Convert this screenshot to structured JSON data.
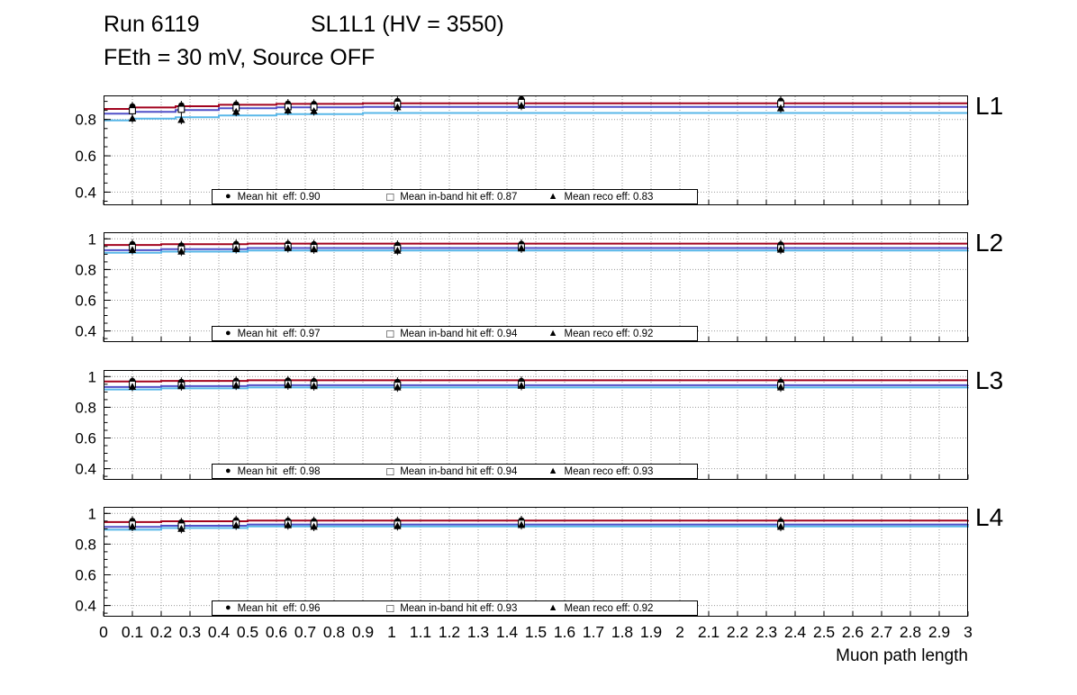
{
  "page": {
    "title_run": "Run 6119",
    "title_sl": "SL1L1 (HV = 3550)",
    "title_line2": "FEth = 30 mV, Source OFF"
  },
  "icons": {
    "filled_circle": "●",
    "open_square": "□",
    "filled_triangle": "▲"
  },
  "axes": {
    "xlim": [
      0,
      3
    ],
    "x_tick_labels": [
      "0",
      "0.1",
      "0.2",
      "0.3",
      "0.4",
      "0.5",
      "0.6",
      "0.7",
      "0.8",
      "0.9",
      "1",
      "1.1",
      "1.2",
      "1.3",
      "1.4",
      "1.5",
      "1.6",
      "1.7",
      "1.8",
      "1.9",
      "2",
      "2.1",
      "2.2",
      "2.3",
      "2.4",
      "2.5",
      "2.6",
      "2.7",
      "2.8",
      "2.9",
      "3"
    ],
    "xlabel": "Muon path length",
    "grid": "dotted"
  },
  "chart_data": [
    {
      "type": "line",
      "panel_label": "L1",
      "ylim": [
        0.33,
        0.93
      ],
      "yticks": [
        0.4,
        0.6,
        0.8
      ],
      "ytick_labels": [
        "0.4",
        "0.6",
        "0.8"
      ],
      "legend": [
        {
          "marker": "filled-circle",
          "text": "Mean hit  eff: 0.90"
        },
        {
          "marker": "open-square",
          "text": "Mean in-band hit eff: 0.87"
        },
        {
          "marker": "filled-triangle",
          "text": "Mean reco eff: 0.83"
        }
      ],
      "lines": [
        {
          "name": "mean-hit-eff",
          "color": "#a2031e",
          "steps": [
            [
              0,
              0.858
            ],
            [
              0.1,
              0.866
            ],
            [
              0.25,
              0.873
            ],
            [
              0.4,
              0.881
            ],
            [
              0.6,
              0.886
            ],
            [
              0.9,
              0.889
            ],
            [
              3,
              0.889
            ]
          ]
        },
        {
          "name": "mean-inband-hit-eff",
          "color": "#5050c8",
          "steps": [
            [
              0,
              0.832
            ],
            [
              0.1,
              0.842
            ],
            [
              0.25,
              0.852
            ],
            [
              0.4,
              0.862
            ],
            [
              0.6,
              0.867
            ],
            [
              0.9,
              0.869
            ],
            [
              3,
              0.869
            ]
          ]
        },
        {
          "name": "mean-reco-eff",
          "color": "#58b7e8",
          "steps": [
            [
              0,
              0.795
            ],
            [
              0.1,
              0.805
            ],
            [
              0.25,
              0.812
            ],
            [
              0.4,
              0.822
            ],
            [
              0.6,
              0.83
            ],
            [
              0.9,
              0.836
            ],
            [
              3,
              0.836
            ]
          ]
        }
      ],
      "markers": {
        "x": [
          0.1,
          0.27,
          0.46,
          0.64,
          0.73,
          1.02,
          1.45,
          2.35
        ],
        "hit_eff": [
          0.872,
          0.878,
          0.884,
          0.888,
          0.886,
          0.902,
          0.912,
          0.903
        ],
        "inband_hit_eff": [
          0.848,
          0.856,
          0.864,
          0.87,
          0.868,
          0.884,
          0.894,
          0.886
        ],
        "reco_eff": [
          0.806,
          0.798,
          0.842,
          0.85,
          0.846,
          0.868,
          0.876,
          0.862
        ]
      }
    },
    {
      "type": "line",
      "panel_label": "L2",
      "ylim": [
        0.33,
        1.04
      ],
      "yticks": [
        0.4,
        0.6,
        0.8,
        1
      ],
      "ytick_labels": [
        "0.4",
        "0.6",
        "0.8",
        "1"
      ],
      "legend": [
        {
          "marker": "filled-circle",
          "text": "Mean hit  eff: 0.97"
        },
        {
          "marker": "open-square",
          "text": "Mean in-band hit eff: 0.94"
        },
        {
          "marker": "filled-triangle",
          "text": "Mean reco eff: 0.92"
        }
      ],
      "lines": [
        {
          "name": "mean-hit-eff",
          "color": "#a2031e",
          "steps": [
            [
              0,
              0.96
            ],
            [
              0.2,
              0.965
            ],
            [
              0.5,
              0.969
            ],
            [
              3,
              0.969
            ]
          ]
        },
        {
          "name": "mean-inband-hit-eff",
          "color": "#5050c8",
          "steps": [
            [
              0,
              0.926
            ],
            [
              0.2,
              0.933
            ],
            [
              0.5,
              0.94
            ],
            [
              3,
              0.941
            ]
          ]
        },
        {
          "name": "mean-reco-eff",
          "color": "#58b7e8",
          "steps": [
            [
              0,
              0.91
            ],
            [
              0.2,
              0.917
            ],
            [
              0.5,
              0.924
            ],
            [
              3,
              0.926
            ]
          ]
        }
      ],
      "markers": {
        "x": [
          0.1,
          0.27,
          0.46,
          0.64,
          0.73,
          1.02,
          1.45,
          2.35
        ],
        "hit_eff": [
          0.966,
          0.957,
          0.967,
          0.968,
          0.965,
          0.961,
          0.967,
          0.964
        ],
        "inband_hit_eff": [
          0.944,
          0.934,
          0.946,
          0.95,
          0.944,
          0.938,
          0.948,
          0.942
        ],
        "reco_eff": [
          0.928,
          0.918,
          0.934,
          0.94,
          0.932,
          0.924,
          0.938,
          0.93
        ]
      }
    },
    {
      "type": "line",
      "panel_label": "L3",
      "ylim": [
        0.33,
        1.04
      ],
      "yticks": [
        0.4,
        0.6,
        0.8,
        1
      ],
      "ytick_labels": [
        "0.4",
        "0.6",
        "0.8",
        "1"
      ],
      "legend": [
        {
          "marker": "filled-circle",
          "text": "Mean hit  eff: 0.98"
        },
        {
          "marker": "open-square",
          "text": "Mean in-band hit eff: 0.94"
        },
        {
          "marker": "filled-triangle",
          "text": "Mean reco eff: 0.93"
        }
      ],
      "lines": [
        {
          "name": "mean-hit-eff",
          "color": "#a2031e",
          "steps": [
            [
              0,
              0.968
            ],
            [
              0.2,
              0.972
            ],
            [
              0.5,
              0.976
            ],
            [
              3,
              0.976
            ]
          ]
        },
        {
          "name": "mean-inband-hit-eff",
          "color": "#5050c8",
          "steps": [
            [
              0,
              0.932
            ],
            [
              0.2,
              0.938
            ],
            [
              0.5,
              0.944
            ],
            [
              3,
              0.945
            ]
          ]
        },
        {
          "name": "mean-reco-eff",
          "color": "#58b7e8",
          "steps": [
            [
              0,
              0.916
            ],
            [
              0.2,
              0.923
            ],
            [
              0.5,
              0.929
            ],
            [
              3,
              0.931
            ]
          ]
        }
      ],
      "markers": {
        "x": [
          0.1,
          0.27,
          0.46,
          0.64,
          0.73,
          1.02,
          1.45,
          2.35
        ],
        "hit_eff": [
          0.972,
          0.966,
          0.973,
          0.974,
          0.971,
          0.966,
          0.972,
          0.966
        ],
        "inband_hit_eff": [
          0.95,
          0.944,
          0.952,
          0.954,
          0.949,
          0.944,
          0.95,
          0.944
        ],
        "reco_eff": [
          0.934,
          0.938,
          0.942,
          0.944,
          0.938,
          0.93,
          0.94,
          0.93
        ]
      }
    },
    {
      "type": "line",
      "panel_label": "L4",
      "ylim": [
        0.33,
        1.04
      ],
      "yticks": [
        0.4,
        0.6,
        0.8,
        1
      ],
      "ytick_labels": [
        "0.4",
        "0.6",
        "0.8",
        "1"
      ],
      "legend": [
        {
          "marker": "filled-circle",
          "text": "Mean hit  eff: 0.96"
        },
        {
          "marker": "open-square",
          "text": "Mean in-band hit eff: 0.93"
        },
        {
          "marker": "filled-triangle",
          "text": "Mean reco eff: 0.92"
        }
      ],
      "lines": [
        {
          "name": "mean-hit-eff",
          "color": "#a2031e",
          "steps": [
            [
              0,
              0.944
            ],
            [
              0.2,
              0.949
            ],
            [
              0.5,
              0.954
            ],
            [
              3,
              0.956
            ]
          ]
        },
        {
          "name": "mean-inband-hit-eff",
          "color": "#5050c8",
          "steps": [
            [
              0,
              0.912
            ],
            [
              0.2,
              0.92
            ],
            [
              0.5,
              0.928
            ],
            [
              3,
              0.93
            ]
          ]
        },
        {
          "name": "mean-reco-eff",
          "color": "#58b7e8",
          "steps": [
            [
              0,
              0.894
            ],
            [
              0.2,
              0.905
            ],
            [
              0.5,
              0.915
            ],
            [
              3,
              0.919
            ]
          ]
        }
      ],
      "markers": {
        "x": [
          0.1,
          0.27,
          0.46,
          0.64,
          0.73,
          1.02,
          1.45,
          2.35
        ],
        "hit_eff": [
          0.952,
          0.942,
          0.956,
          0.953,
          0.95,
          0.95,
          0.955,
          0.949
        ],
        "inband_hit_eff": [
          0.93,
          0.918,
          0.936,
          0.935,
          0.93,
          0.93,
          0.936,
          0.928
        ],
        "reco_eff": [
          0.914,
          0.9,
          0.922,
          0.924,
          0.914,
          0.918,
          0.925,
          0.913
        ]
      }
    }
  ]
}
